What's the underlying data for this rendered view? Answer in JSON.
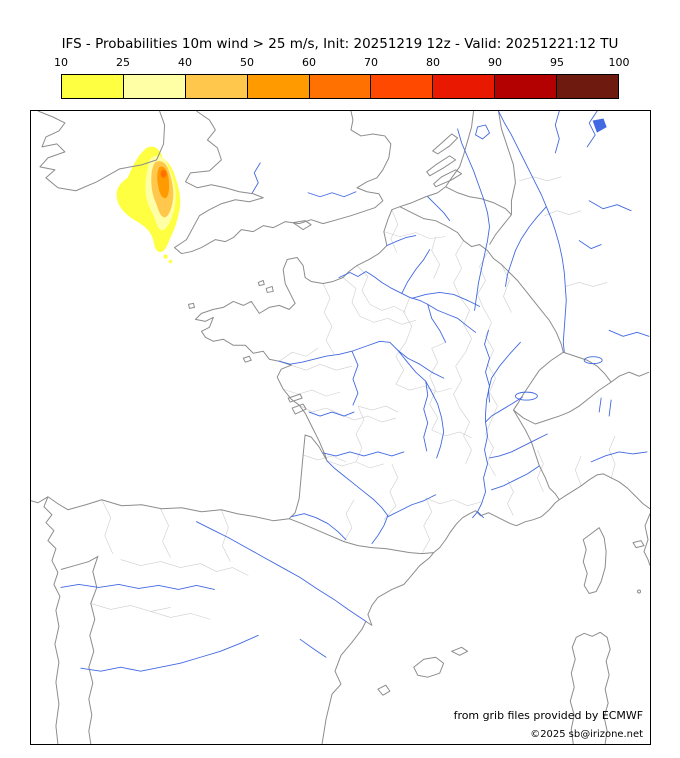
{
  "title": "IFS - Probabilities 10m wind > 25 m/s, Init: 20251219 12z - Valid: 20251221:12 TU",
  "colorbar": {
    "tick_labels": [
      "10",
      "25",
      "40",
      "50",
      "60",
      "70",
      "80",
      "90",
      "95",
      "100"
    ],
    "segment_colors": [
      "#ffff42",
      "#ffffa6",
      "#ffc84d",
      "#ff9b00",
      "#ff7100",
      "#ff4900",
      "#e81900",
      "#b30000",
      "#6e1a0e"
    ]
  },
  "map": {
    "river_color": "#4169e1",
    "coast_color": "#8c8c8c",
    "department_border_color": "#cdcdcd",
    "frame_color": "#000000",
    "credit_line1": "from grib files provided by ECMWF",
    "credit_line2": "©2025 sb@irizone.net",
    "blob": {
      "region": "Celtic Sea between southern Ireland and Cornwall",
      "levels": [
        {
          "value": 10,
          "color": "#ffff42"
        },
        {
          "value": 25,
          "color": "#ffffa6"
        },
        {
          "value": 40,
          "color": "#ffc84d"
        },
        {
          "value": 50,
          "color": "#ff9b00"
        },
        {
          "value": 60,
          "color": "#ff7100"
        }
      ]
    }
  }
}
